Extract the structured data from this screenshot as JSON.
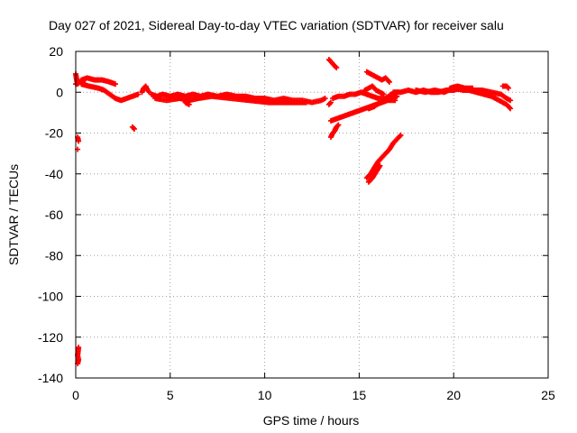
{
  "chart_data": {
    "type": "scatter",
    "title": "Day 027 of 2021, Sidereal Day-to-day VTEC variation (SDTVAR) for receiver salu",
    "xlabel": "GPS time / hours",
    "ylabel": "SDTVAR / TECUs",
    "xlim": [
      0,
      25
    ],
    "ylim": [
      -140,
      20
    ],
    "xticks": [
      0,
      5,
      10,
      15,
      20,
      25
    ],
    "yticks": [
      20,
      0,
      -20,
      -40,
      -60,
      -80,
      -100,
      -120,
      -140
    ],
    "grid": true,
    "marker": "+",
    "color": "#ff0000",
    "series": [
      {
        "name": "SDTVAR",
        "segments": [
          [
            [
              0.0,
              9
            ],
            [
              0.05,
              6
            ],
            [
              0.1,
              4
            ],
            [
              0.3,
              6
            ],
            [
              0.6,
              7
            ],
            [
              1.0,
              6
            ],
            [
              1.4,
              6
            ],
            [
              1.8,
              5
            ],
            [
              2.1,
              4
            ]
          ],
          [
            [
              0.3,
              4
            ],
            [
              0.7,
              3
            ],
            [
              1.2,
              2
            ],
            [
              1.5,
              1
            ],
            [
              1.8,
              -1
            ],
            [
              2.1,
              -3
            ],
            [
              2.4,
              -4
            ],
            [
              2.7,
              -3
            ],
            [
              3.0,
              -2
            ],
            [
              3.3,
              -1
            ]
          ],
          [
            [
              0.0,
              4
            ],
            [
              0.2,
              5
            ],
            [
              0.5,
              4
            ]
          ],
          [
            [
              3.5,
              0
            ],
            [
              3.6,
              2
            ],
            [
              3.7,
              3
            ],
            [
              3.8,
              1
            ],
            [
              3.9,
              0
            ]
          ],
          [
            [
              4.0,
              -1
            ],
            [
              4.3,
              -2
            ],
            [
              4.6,
              -1
            ],
            [
              5.0,
              -2
            ],
            [
              5.4,
              -1
            ],
            [
              5.8,
              -2
            ],
            [
              6.2,
              -1
            ],
            [
              6.6,
              -2
            ],
            [
              7.0,
              -1
            ],
            [
              7.5,
              -2
            ],
            [
              8.0,
              -1
            ],
            [
              8.5,
              -2
            ],
            [
              9.0,
              -2
            ],
            [
              9.5,
              -3
            ],
            [
              10.0,
              -3
            ],
            [
              10.5,
              -4
            ],
            [
              11.0,
              -3
            ],
            [
              11.5,
              -4
            ],
            [
              12.0,
              -4
            ],
            [
              12.5,
              -5
            ],
            [
              13.0,
              -4
            ],
            [
              13.2,
              -3
            ]
          ],
          [
            [
              4.2,
              -3
            ],
            [
              4.8,
              -4
            ],
            [
              5.5,
              -3
            ],
            [
              6.0,
              -4
            ],
            [
              6.5,
              -3
            ],
            [
              7.2,
              -2
            ],
            [
              8.2,
              -3
            ],
            [
              9.2,
              -4
            ],
            [
              10.2,
              -5
            ],
            [
              11.2,
              -5
            ],
            [
              12.2,
              -5
            ]
          ],
          [
            [
              5.8,
              -5
            ],
            [
              6.0,
              -6
            ]
          ],
          [
            [
              13.4,
              16
            ],
            [
              13.5,
              15
            ],
            [
              13.6,
              14
            ],
            [
              13.7,
              13
            ],
            [
              13.8,
              12
            ]
          ],
          [
            [
              13.4,
              -6
            ],
            [
              13.5,
              -5
            ]
          ],
          [
            [
              13.5,
              -22
            ],
            [
              13.6,
              -20
            ],
            [
              13.7,
              -19
            ],
            [
              13.8,
              -17
            ],
            [
              13.9,
              -16
            ]
          ],
          [
            [
              13.5,
              -14
            ],
            [
              13.8,
              -13
            ],
            [
              14.1,
              -12
            ],
            [
              14.4,
              -11
            ],
            [
              14.7,
              -10
            ],
            [
              15.0,
              -9
            ],
            [
              15.3,
              -8
            ],
            [
              15.6,
              -7
            ],
            [
              15.9,
              -6
            ],
            [
              16.2,
              -5
            ],
            [
              16.5,
              -4
            ],
            [
              16.8,
              -3
            ],
            [
              17.0,
              -2
            ]
          ],
          [
            [
              13.6,
              -3
            ],
            [
              13.9,
              -2
            ],
            [
              14.2,
              -2
            ],
            [
              14.5,
              -1
            ],
            [
              14.8,
              -1
            ],
            [
              15.1,
              0
            ],
            [
              15.4,
              -1
            ],
            [
              15.7,
              -2
            ],
            [
              16.0,
              -3
            ],
            [
              16.3,
              -3
            ],
            [
              16.6,
              -4
            ],
            [
              16.9,
              -4
            ]
          ],
          [
            [
              15.5,
              -8
            ],
            [
              15.8,
              -7
            ],
            [
              16.1,
              -5
            ],
            [
              16.4,
              -3
            ],
            [
              16.7,
              -1
            ],
            [
              17.0,
              0
            ]
          ],
          [
            [
              15.3,
              1
            ],
            [
              15.5,
              2
            ],
            [
              15.7,
              3
            ],
            [
              15.9,
              1
            ],
            [
              16.1,
              0
            ],
            [
              16.3,
              -1
            ]
          ],
          [
            [
              15.4,
              10
            ],
            [
              15.6,
              9
            ],
            [
              15.8,
              8
            ],
            [
              16.0,
              7
            ],
            [
              16.2,
              6
            ],
            [
              16.4,
              7
            ],
            [
              16.6,
              5
            ]
          ],
          [
            [
              15.4,
              -42
            ],
            [
              15.6,
              -40
            ],
            [
              15.8,
              -37
            ],
            [
              16.0,
              -34
            ],
            [
              16.2,
              -32
            ],
            [
              16.4,
              -30
            ],
            [
              16.6,
              -28
            ],
            [
              16.8,
              -25
            ],
            [
              17.0,
              -23
            ],
            [
              17.2,
              -21
            ]
          ],
          [
            [
              15.5,
              -44
            ],
            [
              15.7,
              -42
            ],
            [
              15.9,
              -39
            ],
            [
              16.1,
              -36
            ]
          ],
          [
            [
              16.8,
              0
            ],
            [
              17.2,
              0
            ],
            [
              17.6,
              1
            ],
            [
              18.0,
              0
            ],
            [
              18.4,
              1
            ],
            [
              18.8,
              0
            ],
            [
              19.2,
              0
            ],
            [
              19.6,
              1
            ],
            [
              20.0,
              1
            ],
            [
              20.4,
              2
            ],
            [
              20.8,
              1
            ],
            [
              21.2,
              0
            ],
            [
              21.6,
              -1
            ],
            [
              22.0,
              -2
            ],
            [
              22.4,
              -4
            ],
            [
              22.8,
              -6
            ],
            [
              23.0,
              -8
            ]
          ],
          [
            [
              18.0,
              1
            ],
            [
              18.5,
              0
            ],
            [
              19.0,
              1
            ],
            [
              19.5,
              0
            ],
            [
              20.0,
              2
            ],
            [
              20.5,
              1
            ],
            [
              21.0,
              1
            ],
            [
              21.5,
              1
            ],
            [
              22.0,
              0
            ],
            [
              22.5,
              -1
            ],
            [
              22.8,
              -3
            ],
            [
              23.0,
              -4
            ]
          ],
          [
            [
              19.8,
              2
            ],
            [
              20.2,
              3
            ],
            [
              20.6,
              2
            ],
            [
              21.0,
              2
            ]
          ],
          [
            [
              22.6,
              3
            ],
            [
              22.8,
              3
            ],
            [
              22.9,
              2
            ]
          ],
          [
            [
              0.1,
              -22
            ],
            [
              0.15,
              -24
            ]
          ],
          [
            [
              0.1,
              -28
            ]
          ],
          [
            [
              3.0,
              -17
            ],
            [
              3.1,
              -18
            ]
          ],
          [
            [
              0.15,
              -125
            ],
            [
              0.1,
              -129
            ],
            [
              0.15,
              -131
            ],
            [
              0.1,
              -133
            ]
          ]
        ]
      }
    ]
  }
}
